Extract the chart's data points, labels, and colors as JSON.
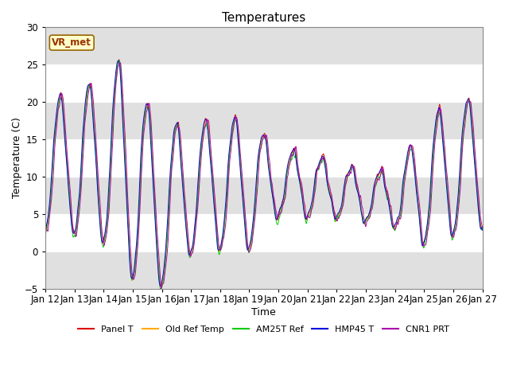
{
  "title": "Temperatures",
  "xlabel": "Time",
  "ylabel": "Temperature (C)",
  "ylim": [
    -5,
    30
  ],
  "background_color": "#ffffff",
  "plot_bg_color": "#ffffff",
  "annotation_text": "VR_met",
  "annotation_box_color": "#ffffcc",
  "annotation_border_color": "#996600",
  "annotation_text_color": "#993300",
  "x_tick_labels": [
    "Jan 12",
    "Jan 13",
    "Jan 14",
    "Jan 15",
    "Jan 16",
    "Jan 17",
    "Jan 18",
    "Jan 19",
    "Jan 20",
    "Jan 21",
    "Jan 22",
    "Jan 23",
    "Jan 24",
    "Jan 25",
    "Jan 26",
    "Jan 27"
  ],
  "series": [
    {
      "name": "Panel T",
      "color": "#dd0000"
    },
    {
      "name": "Old Ref Temp",
      "color": "#ffaa00"
    },
    {
      "name": "AM25T Ref",
      "color": "#00cc00"
    },
    {
      "name": "HMP45 T",
      "color": "#0000dd"
    },
    {
      "name": "CNR1 PRT",
      "color": "#aa00aa"
    }
  ],
  "yticks": [
    -5,
    0,
    5,
    10,
    15,
    20,
    25,
    30
  ],
  "gray_band_color": "#e0e0e0",
  "seed": 12345
}
